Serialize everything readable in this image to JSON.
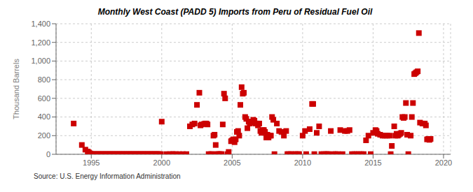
{
  "chart_data": {
    "type": "scatter",
    "title": "Monthly West Coast (PADD 5) Imports from Peru of Residual Fuel Oil",
    "ylabel": "Thousand Barrels",
    "annotations": [
      "Source: U.S. Energy Information Administration"
    ],
    "color": "#cc0000",
    "marker": "square",
    "grid": true,
    "xlim": [
      1992.5,
      2020.5
    ],
    "xticks": [
      1995,
      2000,
      2005,
      2010,
      2015,
      2020
    ],
    "ylim": [
      0,
      1400
    ],
    "yticks": [
      0,
      200,
      400,
      600,
      800,
      {
        "value": 1000,
        "label": "1,000"
      },
      {
        "value": 1200,
        "label": "1,200"
      },
      {
        "value": 1400,
        "label": "1,400"
      }
    ],
    "x": [
      1993.75,
      1994.33,
      1994.58,
      1994.75,
      1994.83,
      1994.92,
      1995.0,
      1995.08,
      1995.17,
      1995.25,
      1995.33,
      1995.42,
      1995.5,
      1995.58,
      1995.67,
      1995.75,
      1995.83,
      1995.92,
      1996.0,
      1996.08,
      1996.17,
      1996.25,
      1996.33,
      1996.42,
      1996.5,
      1996.58,
      1996.67,
      1996.75,
      1996.83,
      1996.92,
      1997.0,
      1997.08,
      1997.17,
      1997.25,
      1997.33,
      1997.42,
      1997.5,
      1997.58,
      1997.67,
      1997.75,
      1997.83,
      1997.92,
      1998.0,
      1998.08,
      1998.17,
      1998.25,
      1998.33,
      1998.42,
      1998.5,
      1998.58,
      1998.67,
      1998.75,
      1998.83,
      1998.92,
      1999.0,
      1999.08,
      1999.17,
      1999.25,
      1999.33,
      1999.42,
      1999.5,
      1999.58,
      1999.67,
      1999.75,
      1999.83,
      1999.92,
      2000.0,
      2000.33,
      2000.58,
      2000.75,
      2000.83,
      2001.0,
      2001.25,
      2001.5,
      2001.75,
      2002.0,
      2002.17,
      2002.33,
      2002.5,
      2002.67,
      2002.75,
      2002.83,
      2003.0,
      2003.08,
      2003.17,
      2003.25,
      2003.33,
      2003.5,
      2003.58,
      2003.67,
      2003.75,
      2003.83,
      2003.92,
      2004.0,
      2004.08,
      2004.17,
      2004.25,
      2004.33,
      2004.42,
      2004.5,
      2004.67,
      2004.75,
      2004.92,
      2005.0,
      2005.08,
      2005.17,
      2005.25,
      2005.33,
      2005.42,
      2005.5,
      2005.58,
      2005.67,
      2005.75,
      2005.83,
      2005.92,
      2006.0,
      2006.08,
      2006.17,
      2006.25,
      2006.33,
      2006.42,
      2006.5,
      2006.58,
      2006.67,
      2006.75,
      2006.83,
      2006.92,
      2007.0,
      2007.08,
      2007.17,
      2007.25,
      2007.33,
      2007.42,
      2007.5,
      2007.58,
      2007.67,
      2007.75,
      2007.83,
      2007.92,
      2008.0,
      2008.17,
      2008.33,
      2008.5,
      2008.67,
      2008.83,
      2008.92,
      2009.0,
      2009.17,
      2009.33,
      2009.5,
      2009.67,
      2009.75,
      2010.0,
      2010.17,
      2010.25,
      2010.5,
      2010.67,
      2010.75,
      2010.83,
      2011.0,
      2011.17,
      2011.33,
      2011.5,
      2011.67,
      2011.75,
      2011.83,
      2012.0,
      2012.17,
      2012.33,
      2012.5,
      2012.67,
      2012.83,
      2013.0,
      2013.17,
      2013.33,
      2013.5,
      2013.67,
      2013.83,
      2014.0,
      2014.17,
      2014.33,
      2014.5,
      2014.67,
      2014.83,
      2015.0,
      2015.17,
      2015.25,
      2015.33,
      2015.5,
      2015.67,
      2015.83,
      2016.0,
      2016.17,
      2016.25,
      2016.33,
      2016.5,
      2016.58,
      2016.67,
      2016.75,
      2016.83,
      2016.92,
      2017.0,
      2017.08,
      2017.17,
      2017.25,
      2017.33,
      2017.42,
      2017.5,
      2017.67,
      2017.75,
      2017.83,
      2017.92,
      2018.0,
      2018.08,
      2018.17,
      2018.25,
      2018.33,
      2018.5,
      2018.67,
      2018.75,
      2018.83,
      2018.92,
      2019.0,
      2019.08
    ],
    "values": [
      330,
      100,
      50,
      30,
      20,
      10,
      2,
      2,
      2,
      2,
      2,
      2,
      2,
      2,
      2,
      2,
      2,
      2,
      2,
      2,
      2,
      2,
      2,
      2,
      2,
      2,
      2,
      2,
      2,
      2,
      2,
      2,
      2,
      2,
      2,
      2,
      2,
      2,
      2,
      2,
      2,
      2,
      2,
      2,
      2,
      2,
      2,
      2,
      2,
      2,
      2,
      2,
      2,
      2,
      2,
      2,
      2,
      2,
      2,
      2,
      2,
      2,
      2,
      2,
      2,
      2,
      350,
      2,
      2,
      2,
      2,
      2,
      2,
      2,
      2,
      300,
      320,
      330,
      530,
      660,
      310,
      320,
      325,
      330,
      330,
      320,
      2,
      2,
      2,
      200,
      210,
      100,
      2,
      2,
      2,
      2,
      2,
      320,
      650,
      600,
      2,
      25,
      140,
      150,
      160,
      130,
      160,
      240,
      250,
      200,
      530,
      720,
      650,
      660,
      400,
      380,
      280,
      350,
      330,
      340,
      350,
      370,
      360,
      330,
      330,
      310,
      330,
      250,
      230,
      260,
      260,
      240,
      180,
      210,
      180,
      200,
      200,
      400,
      370,
      2,
      330,
      250,
      240,
      200,
      250,
      2,
      2,
      2,
      2,
      2,
      2,
      2,
      200,
      250,
      2,
      270,
      540,
      540,
      2,
      230,
      300,
      2,
      2,
      2,
      2,
      2,
      250,
      2,
      2,
      2,
      260,
      2,
      250,
      250,
      260,
      2,
      2,
      2,
      2,
      2,
      2,
      150,
      200,
      2,
      230,
      260,
      250,
      220,
      210,
      200,
      200,
      200,
      200,
      2,
      90,
      300,
      200,
      220,
      200,
      210,
      220,
      230,
      400,
      390,
      400,
      550,
      210,
      2,
      200,
      400,
      550,
      860,
      870,
      880,
      890,
      1300,
      340,
      330,
      330,
      310,
      160,
      165,
      155,
      165
    ]
  }
}
